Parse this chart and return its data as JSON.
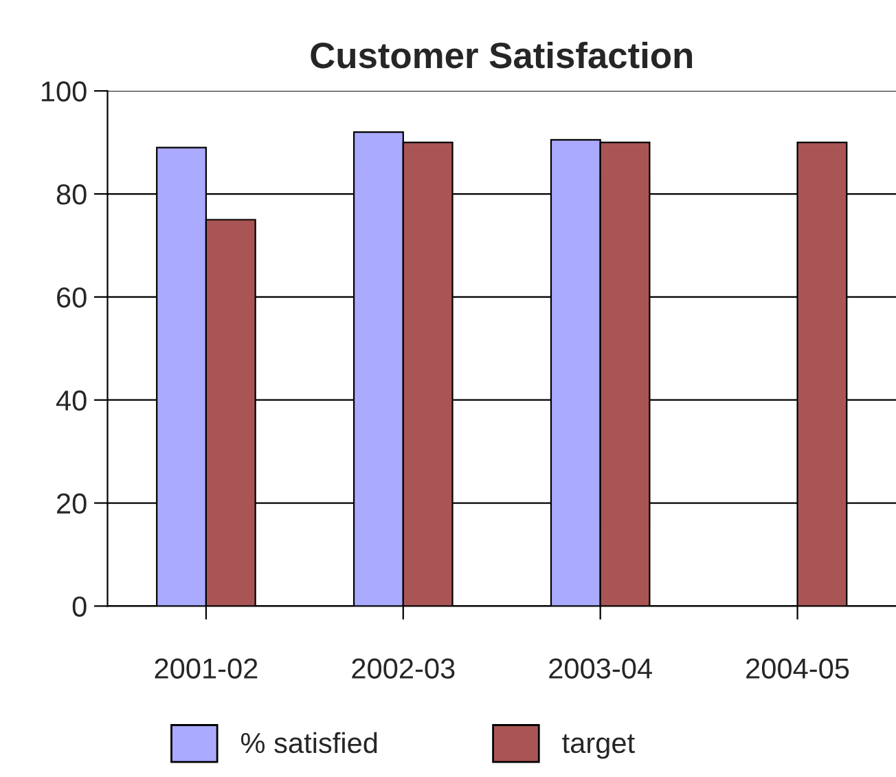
{
  "chart_data": {
    "type": "bar",
    "title": "Customer Satisfaction",
    "categories": [
      "2001-02",
      "2002-03",
      "2003-04",
      "2004-05"
    ],
    "series": [
      {
        "name": "% satisfied",
        "color": "#aaaaff",
        "values": [
          89,
          92,
          90.5,
          null
        ]
      },
      {
        "name": "target",
        "color": "#aa5555",
        "values": [
          75,
          90,
          90,
          90
        ]
      }
    ],
    "ylim": [
      0,
      100
    ],
    "yticks": [
      0,
      20,
      40,
      60,
      80,
      100
    ],
    "grid": "y",
    "legend": "bottom"
  }
}
